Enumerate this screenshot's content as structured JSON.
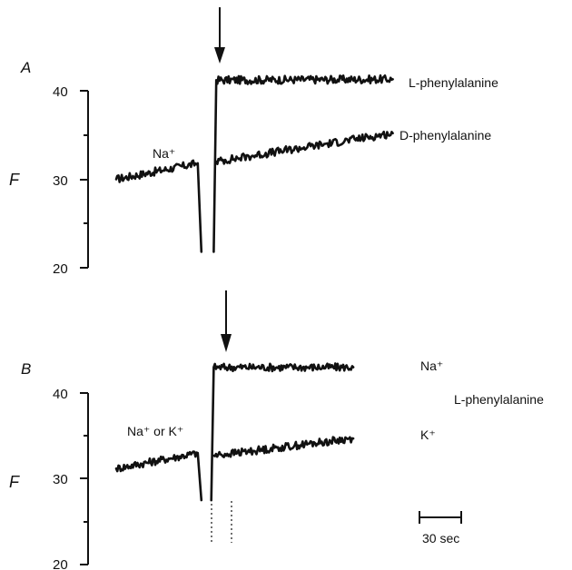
{
  "chart_data": [
    {
      "type": "line",
      "panel": "A",
      "ylabel": "F",
      "ylim": [
        20,
        45
      ],
      "yticks": [
        20,
        30,
        40
      ],
      "x_unit": "sec",
      "xlim": [
        0,
        120
      ],
      "event_marker_time": 36,
      "annotations": [
        {
          "text": "Na⁺",
          "x": 17,
          "y": 33.2
        }
      ],
      "series": [
        {
          "name": "L-phenylalanine",
          "label": "L-phenylalanine",
          "label_y": 41.3,
          "segments": [
            {
              "x": [
                0,
                33
              ],
              "start": 30.0,
              "end": 31.8
            },
            {
              "x": [
                33,
                34.5
              ],
              "start": 31.8,
              "end": 21.8
            },
            {
              "x": [
                39.5,
                40.5
              ],
              "start": 21.8,
              "end": 41.2
            },
            {
              "x": [
                40.5,
                112
              ],
              "start": 41.2,
              "end": 41.3
            }
          ]
        },
        {
          "name": "D-phenylalanine",
          "label": "D-phenylalanine",
          "label_y": 35.2,
          "segments": [
            {
              "x": [
                40.5,
                112
              ],
              "start": 32.0,
              "end": 35.2
            }
          ]
        }
      ]
    },
    {
      "type": "line",
      "panel": "B",
      "ylabel": "F",
      "ylim": [
        20,
        45
      ],
      "yticks": [
        20,
        30,
        40
      ],
      "x_unit": "sec",
      "xlim": [
        0,
        120
      ],
      "event_marker_time": 36,
      "annotations": [
        {
          "text": "Na⁺ or K⁺",
          "x": 5,
          "y": 35.5
        },
        {
          "text": "L-phenylalanine",
          "x": 112,
          "y": 39.7
        }
      ],
      "scale_bar": {
        "length": 30,
        "label": "30 sec"
      },
      "series": [
        {
          "name": "Na⁺",
          "label": "Na⁺",
          "label_y": 43.4,
          "segments": [
            {
              "x": [
                0,
                33
              ],
              "start": 31.2,
              "end": 33.0
            },
            {
              "x": [
                33,
                34.5
              ],
              "start": 33.0,
              "end": 27.5
            },
            {
              "x": [
                38.5,
                39.5
              ],
              "start": 27.5,
              "end": 43.0
            },
            {
              "x": [
                39.5,
                96
              ],
              "start": 43.0,
              "end": 43.0
            }
          ]
        },
        {
          "name": "K⁺",
          "label": "K⁺",
          "label_y": 35.0,
          "segments": [
            {
              "x": [
                39.5,
                96
              ],
              "start": 32.7,
              "end": 34.7
            }
          ]
        }
      ]
    }
  ]
}
